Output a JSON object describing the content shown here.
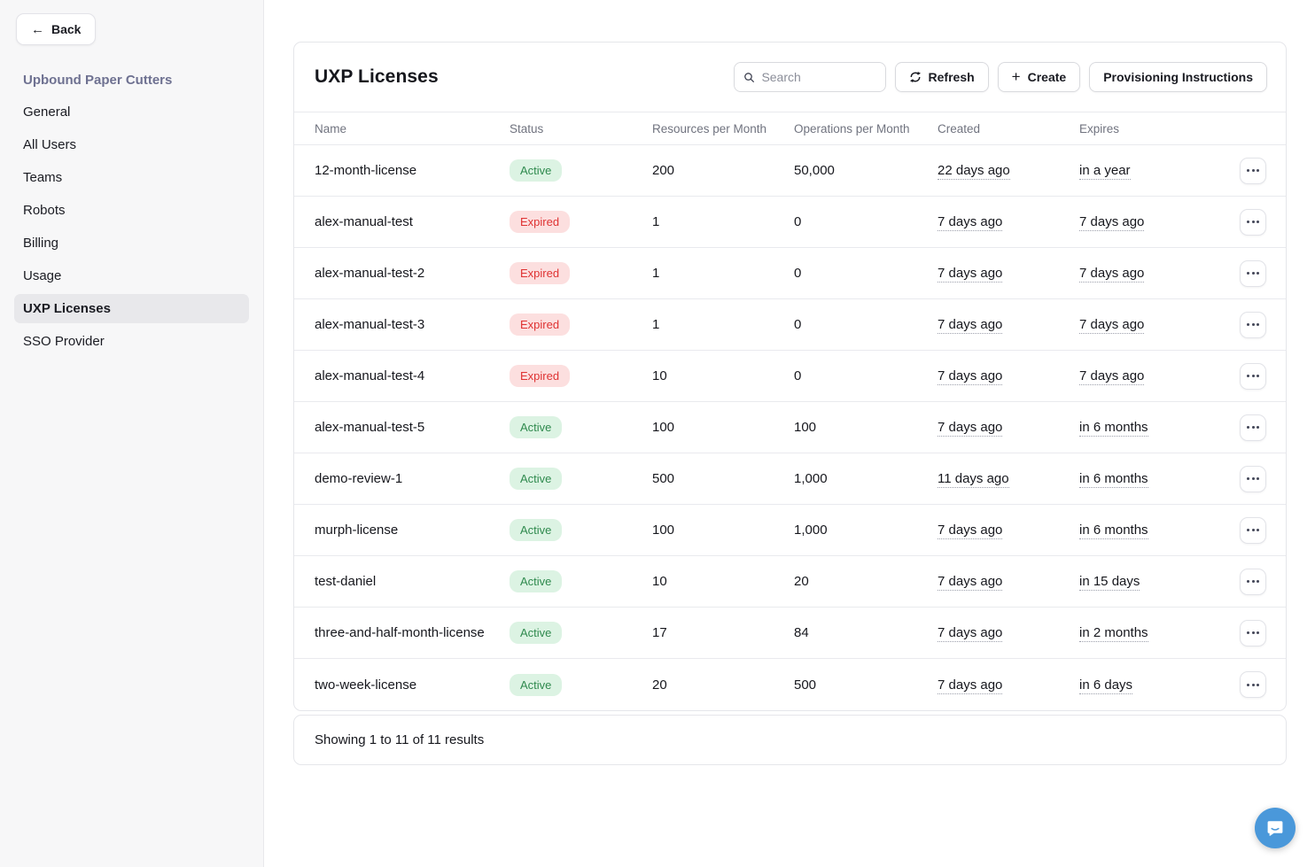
{
  "sidebar": {
    "back_label": "Back",
    "org_title": "Upbound Paper Cutters",
    "items": [
      {
        "label": "General",
        "active": false
      },
      {
        "label": "All Users",
        "active": false
      },
      {
        "label": "Teams",
        "active": false
      },
      {
        "label": "Robots",
        "active": false
      },
      {
        "label": "Billing",
        "active": false
      },
      {
        "label": "Usage",
        "active": false
      },
      {
        "label": "UXP Licenses",
        "active": true
      },
      {
        "label": "SSO Provider",
        "active": false
      }
    ]
  },
  "main": {
    "title": "UXP Licenses",
    "toolbar": {
      "search_placeholder": "Search",
      "refresh_label": "Refresh",
      "create_label": "Create",
      "provisioning_label": "Provisioning Instructions"
    },
    "table": {
      "columns": [
        "Name",
        "Status",
        "Resources per Month",
        "Operations per Month",
        "Created",
        "Expires"
      ],
      "rows": [
        {
          "name": "12-month-license",
          "status": "Active",
          "resources": "200",
          "operations": "50,000",
          "created": "22 days ago",
          "expires": "in a year"
        },
        {
          "name": "alex-manual-test",
          "status": "Expired",
          "resources": "1",
          "operations": "0",
          "created": "7 days ago",
          "expires": "7 days ago"
        },
        {
          "name": "alex-manual-test-2",
          "status": "Expired",
          "resources": "1",
          "operations": "0",
          "created": "7 days ago",
          "expires": "7 days ago"
        },
        {
          "name": "alex-manual-test-3",
          "status": "Expired",
          "resources": "1",
          "operations": "0",
          "created": "7 days ago",
          "expires": "7 days ago"
        },
        {
          "name": "alex-manual-test-4",
          "status": "Expired",
          "resources": "10",
          "operations": "0",
          "created": "7 days ago",
          "expires": "7 days ago"
        },
        {
          "name": "alex-manual-test-5",
          "status": "Active",
          "resources": "100",
          "operations": "100",
          "created": "7 days ago",
          "expires": "in 6 months"
        },
        {
          "name": "demo-review-1",
          "status": "Active",
          "resources": "500",
          "operations": "1,000",
          "created": "11 days ago",
          "expires": "in 6 months"
        },
        {
          "name": "murph-license",
          "status": "Active",
          "resources": "100",
          "operations": "1,000",
          "created": "7 days ago",
          "expires": "in 6 months"
        },
        {
          "name": "test-daniel",
          "status": "Active",
          "resources": "10",
          "operations": "20",
          "created": "7 days ago",
          "expires": "in 15 days"
        },
        {
          "name": "three-and-half-month-license",
          "status": "Active",
          "resources": "17",
          "operations": "84",
          "created": "7 days ago",
          "expires": "in 2 months"
        },
        {
          "name": "two-week-license",
          "status": "Active",
          "resources": "20",
          "operations": "500",
          "created": "7 days ago",
          "expires": "in 6 days"
        }
      ],
      "footer_text": "Showing 1 to 11 of 11 results"
    }
  },
  "icons": {
    "back_arrow": "←",
    "plus": "+",
    "search": "search-icon",
    "refresh": "refresh-icon",
    "row_menu": "ellipsis-icon",
    "chat": "chat-bubble-icon"
  },
  "colors": {
    "active_badge_bg": "#dcf3e3",
    "active_badge_text": "#2f8a4e",
    "expired_badge_bg": "#fcdfdf",
    "expired_badge_text": "#df3333",
    "sidebar_bg": "#f7f7f8",
    "selected_nav_bg": "#e8e8eb",
    "org_title_color": "#6e7191",
    "chat_launcher_bg": "#4a98da"
  }
}
